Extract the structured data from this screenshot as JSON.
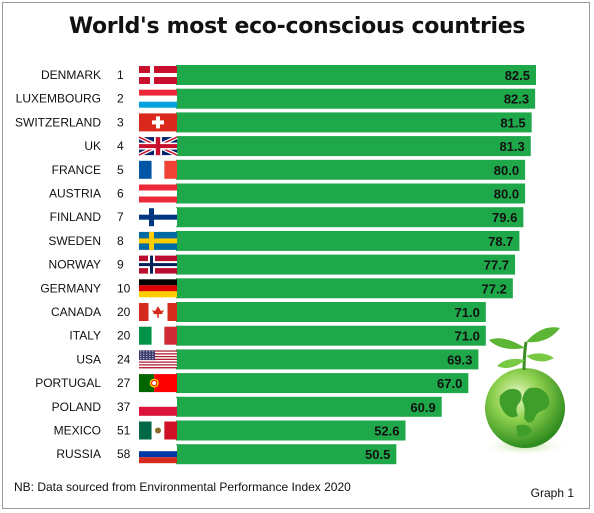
{
  "title": "World's most eco-conscious countries",
  "footnote": "NB: Data sourced from Environmental Performance Index 2020",
  "graph_label": "Graph 1",
  "colors": {
    "bar": "#1fa84a",
    "text": "#111111"
  },
  "decoration": {
    "globe_icon": "eco-globe-with-sprout-icon"
  },
  "chart_data": {
    "type": "bar",
    "orientation": "horizontal",
    "categories": [
      "DENMARK",
      "LUXEMBOURG",
      "SWITZERLAND",
      "UK",
      "FRANCE",
      "AUSTRIA",
      "FINLAND",
      "SWEDEN",
      "NORWAY",
      "GERMANY",
      "CANADA",
      "ITALY",
      "USA",
      "PORTUGAL",
      "POLAND",
      "MEXICO",
      "RUSSIA"
    ],
    "ranks": [
      "1",
      "2",
      "3",
      "4",
      "5",
      "6",
      "7",
      "8",
      "9",
      "10",
      "20",
      "20",
      "24",
      "27",
      "37",
      "51",
      "58"
    ],
    "values": [
      82.5,
      82.3,
      81.5,
      81.3,
      80.0,
      80.0,
      79.6,
      78.7,
      77.7,
      77.2,
      71.0,
      71.0,
      69.3,
      67.0,
      60.9,
      52.6,
      50.5
    ],
    "value_labels": [
      "82.5",
      "82.3",
      "81.5",
      "81.3",
      "80.0",
      "80.0",
      "79.6",
      "78.7",
      "77.7",
      "77.2",
      "71.0",
      "71.0",
      "69.3",
      "67.0",
      "60.9",
      "52.6",
      "50.5"
    ],
    "flags": [
      "denmark",
      "luxembourg",
      "switzerland",
      "uk",
      "france",
      "austria",
      "finland",
      "sweden",
      "norway",
      "germany",
      "canada",
      "italy",
      "usa",
      "portugal",
      "poland",
      "mexico",
      "russia"
    ],
    "xlim": [
      0,
      82.5
    ],
    "grid": false,
    "legend": "none"
  }
}
